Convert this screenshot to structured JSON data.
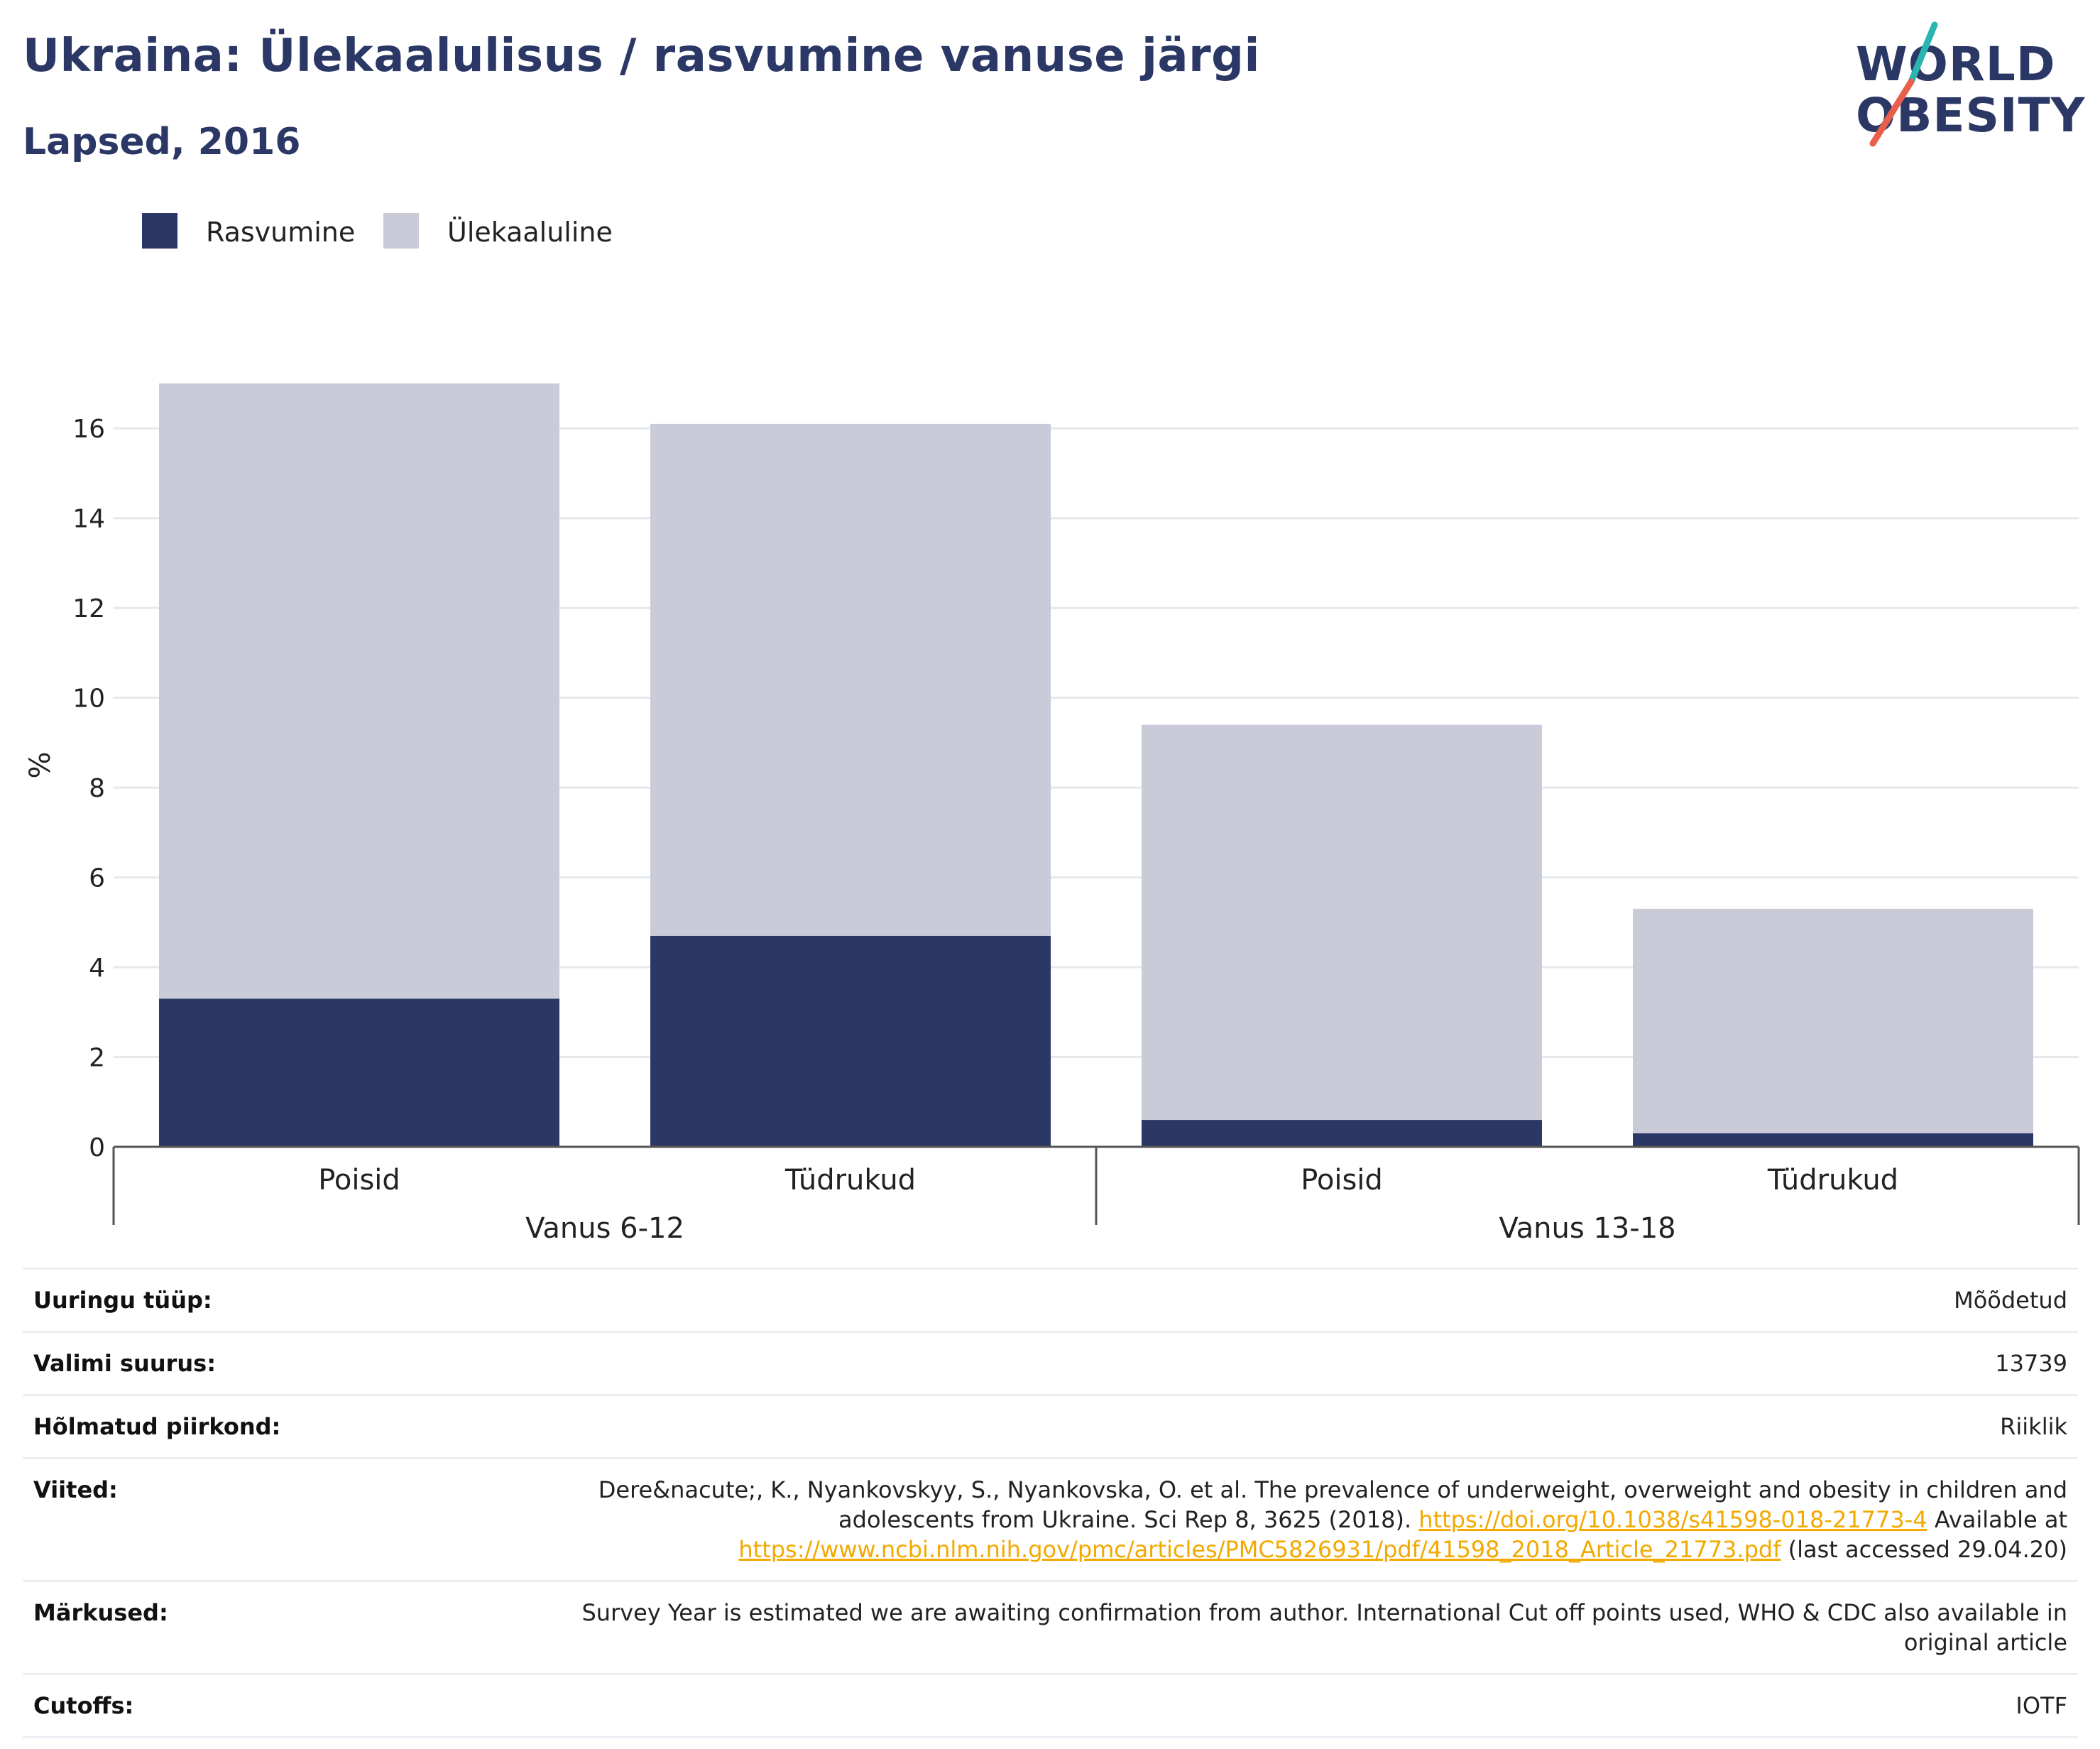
{
  "header": {
    "title": "Ukraina: Ülekaalulisus / rasvumine vanuse järgi",
    "subtitle": "Lapsed, 2016"
  },
  "logo": {
    "line1": "WORLD",
    "line2": "OBESITY"
  },
  "colors": {
    "rasvumine": "#2b3765",
    "ulekaaluline": "#c9ccd8",
    "title": "#2b3765",
    "grid": "#e6e8ee",
    "axis": "#555555",
    "link": "#f2a900",
    "logo_teal": "#2bb5b0",
    "logo_coral": "#e8604c"
  },
  "legend": {
    "items": [
      {
        "label": "Rasvumine",
        "color": "#2b3765"
      },
      {
        "label": "Ülekaaluline",
        "color": "#c9ccd8"
      }
    ]
  },
  "chart_data": {
    "type": "bar",
    "stacked": true,
    "ylabel": "%",
    "ylim": [
      0,
      17
    ],
    "yticks": [
      0,
      2,
      4,
      6,
      8,
      10,
      12,
      14,
      16
    ],
    "grid": true,
    "legend_position": "top-left",
    "categories": [
      "Poisid",
      "Tüdrukud",
      "Poisid",
      "Tüdrukud"
    ],
    "groups": [
      {
        "label": "Vanus 6-12",
        "categories": [
          "Poisid",
          "Tüdrukud"
        ]
      },
      {
        "label": "Vanus 13-18",
        "categories": [
          "Poisid",
          "Tüdrukud"
        ]
      }
    ],
    "series": [
      {
        "name": "Rasvumine",
        "values": [
          3.3,
          4.7,
          0.6,
          0.3
        ]
      },
      {
        "name": "Ülekaaluline",
        "values": [
          13.7,
          11.4,
          8.8,
          5.0
        ]
      }
    ],
    "totals": [
      17.0,
      16.1,
      9.4,
      5.3
    ]
  },
  "info": {
    "rows": [
      {
        "key": "Uuringu tüüp:",
        "value": "Mõõdetud"
      },
      {
        "key": "Valimi suurus:",
        "value": "13739"
      },
      {
        "key": "Hõlmatud piirkond:",
        "value": "Riiklik"
      },
      {
        "key": "Viited:",
        "value_parts": [
          "Dere&nacute;, K., Nyankovskyy, S., Nyankovska, O. et al. The prevalence of underweight, overweight and obesity in children and adolescents from Ukraine. Sci Rep 8, 3625 (2018). ",
          "https://doi.org/10.1038/s41598-018-21773-4",
          " Available at ",
          "https://www.ncbi.nlm.nih.gov/pmc/articles/PMC5826931/pdf/41598_2018_Article_21773.pdf",
          " (last accessed 29.04.20)"
        ]
      },
      {
        "key": "Märkused:",
        "value": "Survey Year is estimated we are awaiting confirmation from author. International Cut off points used, WHO & CDC also available in original article"
      },
      {
        "key": "Cutoffs:",
        "value": "IOTF"
      }
    ]
  }
}
